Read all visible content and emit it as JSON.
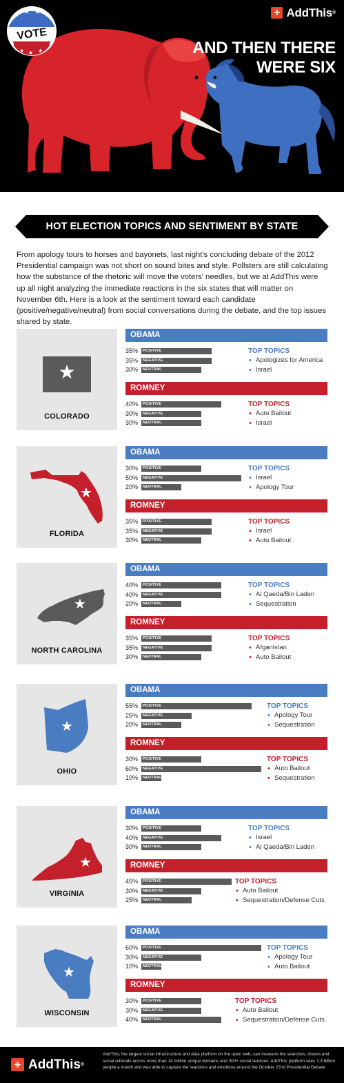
{
  "header": {
    "logo_text": "AddThis",
    "logo_reg": "®",
    "title": "AND THEN THERE WERE SIX",
    "vote_badge": "VOTE"
  },
  "section_title": "HOT ELECTION TOPICS AND SENTIMENT BY STATE",
  "intro": "From apology tours to horses and bayonets, last night's concluding debate of the 2012 Presidential campaign was not short on sound bites and style. Pollsters are still calculating how the substance of the rhetoric will move the voters' needles, but we at AddThis were up all night analyzing the immediate reactions in the six states that will matter on November 6th. Here is a look at the sentiment toward each candidate (positive/negative/neutral) from social conversations during the debate, and the top issues shared by state.",
  "labels": {
    "obama": "OBAMA",
    "romney": "ROMNEY",
    "top_topics": "TOP TOPICS",
    "positive": "POSITIVE",
    "negative": "NEGATIVE",
    "neutral": "NEUTRAL"
  },
  "colors": {
    "obama": "#4a7cc2",
    "romney": "#c4202c",
    "bar": "#5a5a5a",
    "panel": "#e6e6e6"
  },
  "chart_data": [
    {
      "type": "bar",
      "state": "COLORADO",
      "map_color": "#5a5a5a",
      "categories": [
        "POSITIVE",
        "NEGATIVE",
        "NEUTRAL"
      ],
      "series": [
        {
          "name": "OBAMA",
          "values": [
            35,
            35,
            30
          ],
          "value_labels": [
            "35%",
            "35%",
            "30%"
          ],
          "topics": [
            "Apologizes for America",
            "Israel"
          ]
        },
        {
          "name": "ROMNEY",
          "values": [
            40,
            30,
            30
          ],
          "value_labels": [
            "40%",
            "30%",
            "30%"
          ],
          "topics": [
            "Auto Bailout",
            "Israel"
          ]
        }
      ]
    },
    {
      "type": "bar",
      "state": "FLORIDA",
      "map_color": "#c4202c",
      "categories": [
        "POSITIVE",
        "NEGATIVE",
        "NEUTRAL"
      ],
      "series": [
        {
          "name": "OBAMA",
          "values": [
            30,
            50,
            20
          ],
          "value_labels": [
            "30%",
            "50%",
            "20%"
          ],
          "topics": [
            "Israel",
            "Apology Tour"
          ]
        },
        {
          "name": "ROMNEY",
          "values": [
            35,
            35,
            30
          ],
          "value_labels": [
            "35%",
            "35%",
            "30%"
          ],
          "topics": [
            "Israel",
            "Auto Bailout"
          ]
        }
      ]
    },
    {
      "type": "bar",
      "state": "NORTH CAROLINA",
      "map_color": "#5a5a5a",
      "categories": [
        "POSITIVE",
        "NEGATIVE",
        "NEUTRAL"
      ],
      "series": [
        {
          "name": "OBAMA",
          "values": [
            40,
            40,
            20
          ],
          "value_labels": [
            "40%",
            "40%",
            "20%"
          ],
          "topics": [
            "Al Qaeda/Bin Laden",
            "Sequestration"
          ]
        },
        {
          "name": "ROMNEY",
          "values": [
            35,
            35,
            30
          ],
          "value_labels": [
            "35%",
            "35%",
            "30%"
          ],
          "topics": [
            "Afganistan",
            "Auto Bailout"
          ]
        }
      ]
    },
    {
      "type": "bar",
      "state": "OHIO",
      "map_color": "#4a7cc2",
      "categories": [
        "POSITIVE",
        "NEGATIVE",
        "NEUTRAL"
      ],
      "series": [
        {
          "name": "OBAMA",
          "values": [
            55,
            25,
            20
          ],
          "value_labels": [
            "55%",
            "25%",
            "20%"
          ],
          "topics": [
            "Apology Tour",
            "Sequestration"
          ]
        },
        {
          "name": "ROMNEY",
          "values": [
            30,
            60,
            10
          ],
          "value_labels": [
            "30%",
            "60%",
            "10%"
          ],
          "topics": [
            "Auto Bailout",
            "Sequestration"
          ]
        }
      ]
    },
    {
      "type": "bar",
      "state": "VIRGINIA",
      "map_color": "#c4202c",
      "categories": [
        "POSITIVE",
        "NEGATIVE",
        "NEUTRAL"
      ],
      "series": [
        {
          "name": "OBAMA",
          "values": [
            30,
            40,
            30
          ],
          "value_labels": [
            "30%",
            "40%",
            "30%"
          ],
          "topics": [
            "Israel",
            "Al Qaeda/Bin Laden"
          ]
        },
        {
          "name": "ROMNEY",
          "values": [
            45,
            30,
            25
          ],
          "value_labels": [
            "45%",
            "30%",
            "25%"
          ],
          "topics": [
            "Auto Bailout",
            "Sequestration/Defense Cuts"
          ]
        }
      ]
    },
    {
      "type": "bar",
      "state": "WISCONSIN",
      "map_color": "#4a7cc2",
      "categories": [
        "POSITIVE",
        "NEGATIVE",
        "NEUTRAL"
      ],
      "series": [
        {
          "name": "OBAMA",
          "values": [
            60,
            30,
            10
          ],
          "value_labels": [
            "60%",
            "30%",
            "10%"
          ],
          "topics": [
            "Apology Tour",
            "Auto Bailout"
          ]
        },
        {
          "name": "ROMNEY",
          "values": [
            30,
            30,
            40
          ],
          "value_labels": [
            "30%",
            "30%",
            "40%"
          ],
          "topics": [
            "Auto Bailout",
            "Sequestration/Defense Cuts"
          ]
        }
      ]
    }
  ],
  "footer": {
    "logo_text": "AddThis",
    "logo_reg": "®",
    "text": "AddThis, the largest social infrastructure and data platform on the open web, can measure the searches, shares and social referrals across more than 14 million unique domains and 300+ social services. AddThis' platform sees 1.3 billion people a month and was able to capture the reactions and emotions around the October 22nd Presidential Debate"
  }
}
